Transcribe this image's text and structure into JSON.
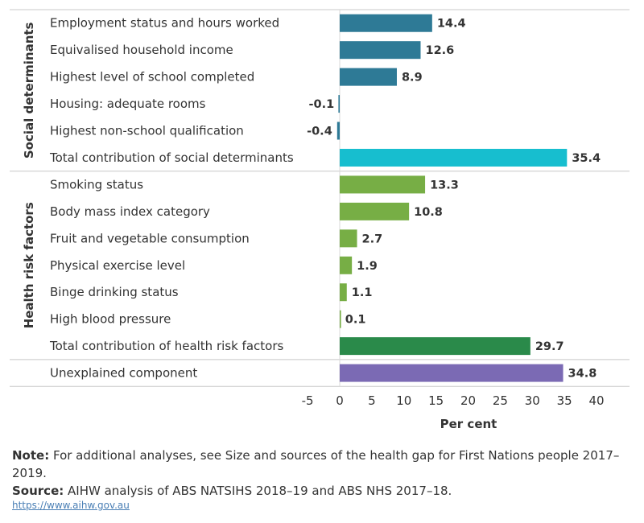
{
  "chart_data": {
    "type": "bar",
    "orientation": "horizontal",
    "xlabel": "Per cent",
    "xlim": [
      -5,
      40
    ],
    "xticks": [
      -5,
      0,
      5,
      10,
      15,
      20,
      25,
      30,
      35,
      40
    ],
    "groups": [
      {
        "name": "Social determinants",
        "items": [
          {
            "label": "Employment status and hours worked",
            "value": 14.4,
            "value_label": "14.4",
            "color": "#2e7a96"
          },
          {
            "label": "Equivalised household income",
            "value": 12.6,
            "value_label": "12.6",
            "color": "#2e7a96"
          },
          {
            "label": "Highest level of school completed",
            "value": 8.9,
            "value_label": "8.9",
            "color": "#2e7a96"
          },
          {
            "label": "Housing: adequate rooms",
            "value": -0.1,
            "value_label": "-0.1",
            "color": "#2e7a96"
          },
          {
            "label": "Highest non-school qualification",
            "value": -0.4,
            "value_label": "-0.4",
            "color": "#2e7a96"
          },
          {
            "label": "Total contribution of social determinants",
            "value": 35.4,
            "value_label": "35.4",
            "color": "#17becf"
          }
        ]
      },
      {
        "name": "Health risk factors",
        "items": [
          {
            "label": "Smoking status",
            "value": 13.3,
            "value_label": "13.3",
            "color": "#77ae45"
          },
          {
            "label": "Body mass index category",
            "value": 10.8,
            "value_label": "10.8",
            "color": "#77ae45"
          },
          {
            "label": "Fruit and vegetable consumption",
            "value": 2.7,
            "value_label": "2.7",
            "color": "#77ae45"
          },
          {
            "label": "Physical exercise level",
            "value": 1.9,
            "value_label": "1.9",
            "color": "#77ae45"
          },
          {
            "label": "Binge drinking status",
            "value": 1.1,
            "value_label": "1.1",
            "color": "#77ae45"
          },
          {
            "label": "High blood pressure",
            "value": 0.1,
            "value_label": "0.1",
            "color": "#77ae45"
          },
          {
            "label": "Total contribution of health risk factors",
            "value": 29.7,
            "value_label": "29.7",
            "color": "#2a8a4a"
          }
        ]
      },
      {
        "name": "",
        "items": [
          {
            "label": "Unexplained component",
            "value": 34.8,
            "value_label": "34.8",
            "color": "#7b6ab4"
          }
        ]
      }
    ]
  },
  "footer": {
    "note_label": "Note:",
    "note_text": " For additional analyses, see Size and sources of the health gap for First Nations people 2017–2019.",
    "source_label": "Source:",
    "source_text": " AIHW analysis of ABS NATSIHS 2018–19 and ABS NHS 2017–18.",
    "link": "https://www.aihw.gov.au"
  }
}
